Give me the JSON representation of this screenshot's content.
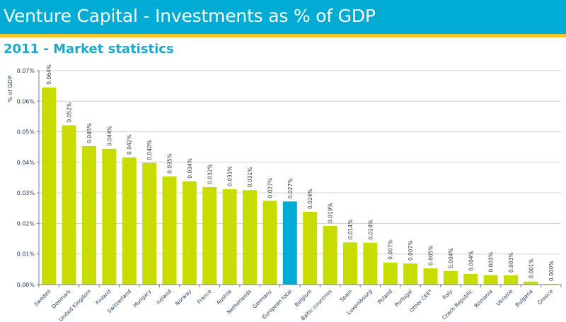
{
  "header": {
    "title": "Venture Capital - Investments as % of GDP",
    "subtitle": "2011 - Market statistics"
  },
  "colors": {
    "header_bg": "#00acd4",
    "header_stripe": "#f6c628",
    "bar_default": "#c8dc00",
    "bar_highlight": "#00acd4",
    "gridline": "#c8d2d8",
    "axis": "#6e7f8d"
  },
  "chart_data": {
    "type": "bar",
    "title": "Venture Capital - Investments as % of GDP",
    "subtitle": "2011 - Market statistics",
    "xlabel": "",
    "ylabel": "% of GDP",
    "ylim": [
      0,
      0.07
    ],
    "yticks": [
      0.0,
      0.01,
      0.02,
      0.03,
      0.04,
      0.05,
      0.06,
      0.07
    ],
    "ytick_labels": [
      "0.00%",
      "0.01%",
      "0.02%",
      "0.03%",
      "0.04%",
      "0.05%",
      "0.06%",
      "0.07%"
    ],
    "grid": true,
    "legend": "none",
    "highlight_category": "European total",
    "categories": [
      "Sweden",
      "Denmark",
      "United Kingdom",
      "Finland",
      "Switzerland",
      "Hungary",
      "Ireland",
      "Norway",
      "France",
      "Austria",
      "Netherlands",
      "Germany",
      "European total",
      "Belgium",
      "Baltic countries",
      "Spain",
      "Luxembourg",
      "Poland",
      "Portugal",
      "Other CEE*",
      "Italy",
      "Czech Republic",
      "Romania",
      "Ukraine",
      "Bulgaria",
      "Greece"
    ],
    "values": [
      0.0645,
      0.0521,
      0.0453,
      0.0444,
      0.0416,
      0.0398,
      0.0354,
      0.0338,
      0.0319,
      0.0312,
      0.0309,
      0.0274,
      0.0272,
      0.0238,
      0.0192,
      0.0138,
      0.0137,
      0.0072,
      0.0069,
      0.0053,
      0.0044,
      0.0035,
      0.0031,
      0.003,
      0.001,
      0.0002
    ],
    "data_labels": [
      "0.064%",
      "0.052%",
      "0.045%",
      "0.044%",
      "0.042%",
      "0.040%",
      "0.035%",
      "0.034%",
      "0.032%",
      "0.031%",
      "0.031%",
      "0.027%",
      "0.027%",
      "0.024%",
      "0.019%",
      "0.014%",
      "0.014%",
      "0.007%",
      "0.007%",
      "0.005%",
      "0.004%",
      "0.004%",
      "0.003%",
      "0.003%",
      "0.001%",
      "0.000%"
    ]
  }
}
